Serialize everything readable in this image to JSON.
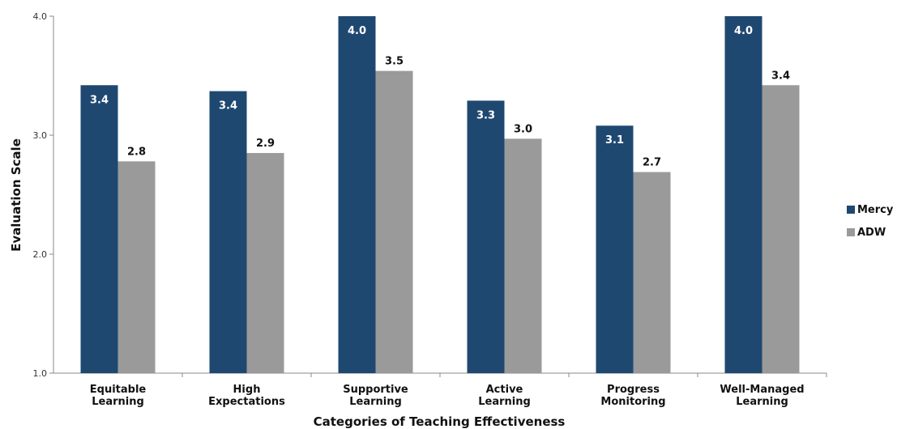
{
  "chart_data": {
    "type": "bar",
    "xlabel": "Categories of Teaching Effectiveness",
    "ylabel": "Evaluation Scale",
    "ylim": [
      1.0,
      4.0
    ],
    "yticks": [
      "1.0",
      "2.0",
      "3.0",
      "4.0"
    ],
    "grid": false,
    "legend_position": "right",
    "categories": [
      [
        "Equitable",
        "Learning"
      ],
      [
        "High",
        "Expectations"
      ],
      [
        "Supportive",
        "Learning"
      ],
      [
        "Active",
        "Learning"
      ],
      [
        "Progress",
        "Monitoring"
      ],
      [
        "Well-Managed",
        "Learning"
      ]
    ],
    "series": [
      {
        "name": "Mercy",
        "color": "#1f4871",
        "values": [
          3.42,
          3.37,
          4.0,
          3.29,
          3.08,
          4.0
        ],
        "labels": [
          "3.4",
          "3.4",
          "4.0",
          "3.3",
          "3.1",
          "4.0"
        ]
      },
      {
        "name": "ADW",
        "color": "#9a9a9a",
        "values": [
          2.78,
          2.85,
          3.54,
          2.97,
          2.69,
          3.42
        ],
        "labels": [
          "2.8",
          "2.9",
          "3.5",
          "3.0",
          "2.7",
          "3.4"
        ]
      }
    ]
  }
}
